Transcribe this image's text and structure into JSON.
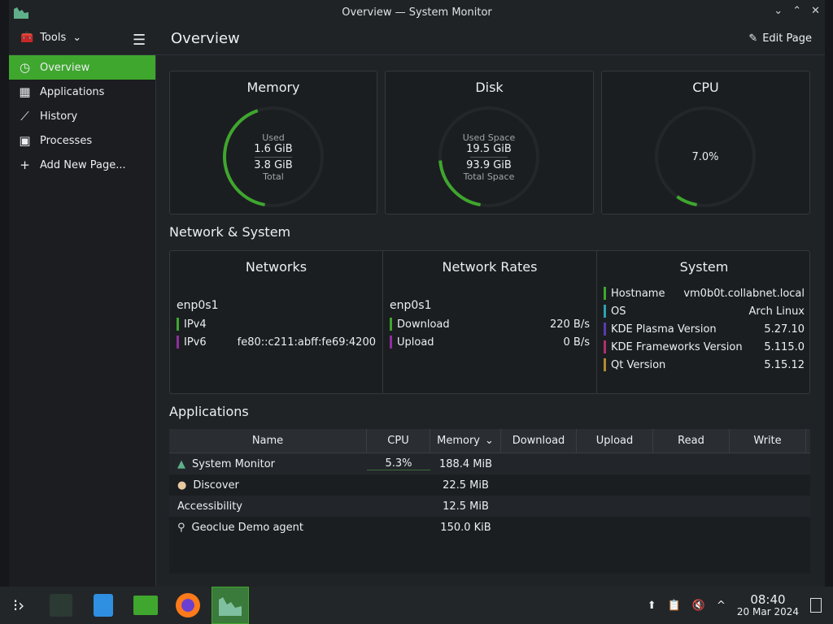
{
  "window": {
    "title": "Overview — System Monitor",
    "buttons": [
      "⌄",
      "⌃",
      "✕"
    ]
  },
  "toolbar": {
    "tools_label": "Tools",
    "page_title": "Overview",
    "edit_label": "Edit Page"
  },
  "sidebar": {
    "items": [
      {
        "label": "Overview",
        "icon": "gauge-icon",
        "glyph": "◷",
        "active": true
      },
      {
        "label": "Applications",
        "icon": "grid-icon",
        "glyph": "▦"
      },
      {
        "label": "History",
        "icon": "chart-icon",
        "glyph": "⟋"
      },
      {
        "label": "Processes",
        "icon": "window-icon",
        "glyph": "▣"
      },
      {
        "label": "Add New Page...",
        "icon": "plus-icon",
        "glyph": "+"
      }
    ]
  },
  "cards": {
    "memory": {
      "title": "Memory",
      "top_label": "Used",
      "used": "1.6 GiB",
      "total": "3.8 GiB",
      "bottom_label": "Total",
      "fraction": 0.42
    },
    "disk": {
      "title": "Disk",
      "top_label": "Used Space",
      "used": "19.5 GiB",
      "total": "93.9 GiB",
      "bottom_label": "Total Space",
      "fraction": 0.21
    },
    "cpu": {
      "title": "CPU",
      "value": "7.0%",
      "fraction": 0.07
    }
  },
  "accent": "#3fa62e",
  "network_system": {
    "title": "Network & System",
    "networks": {
      "title": "Networks",
      "iface": "enp0s1",
      "rows": [
        {
          "k": "IPv4",
          "v": "",
          "color": "#3fa62e"
        },
        {
          "k": "IPv6",
          "v": "fe80::c211:abff:fe69:4200",
          "color": "#8e2e9e"
        }
      ]
    },
    "rates": {
      "title": "Network Rates",
      "iface": "enp0s1",
      "rows": [
        {
          "k": "Download",
          "v": "220 B/s",
          "color": "#3fa62e"
        },
        {
          "k": "Upload",
          "v": "0 B/s",
          "color": "#8e2e9e"
        }
      ]
    },
    "system": {
      "title": "System",
      "rows": [
        {
          "k": "Hostname",
          "v": "vm0b0t.collabnet.local",
          "color": "#3fa62e"
        },
        {
          "k": "OS",
          "v": "Arch Linux",
          "color": "#2ea0b0"
        },
        {
          "k": "KDE Plasma Version",
          "v": "5.27.10",
          "color": "#5a3ab0"
        },
        {
          "k": "KDE Frameworks Version",
          "v": "5.115.0",
          "color": "#b02e6e"
        },
        {
          "k": "Qt Version",
          "v": "5.15.12",
          "color": "#b08a2e"
        }
      ]
    }
  },
  "applications": {
    "title": "Applications",
    "columns": [
      "Name",
      "CPU",
      "Memory",
      "Download",
      "Upload",
      "Read",
      "Write"
    ],
    "rows": [
      {
        "name": "System Monitor",
        "cpu": "5.3%",
        "memory": "188.4 MiB",
        "icon": "system-monitor-icon"
      },
      {
        "name": "Discover",
        "cpu": "",
        "memory": "22.5 MiB",
        "icon": "discover-icon"
      },
      {
        "name": "Accessibility",
        "cpu": "",
        "memory": "12.5 MiB",
        "icon": ""
      },
      {
        "name": "Geoclue Demo agent",
        "cpu": "",
        "memory": "150.0 KiB",
        "icon": "location-icon"
      }
    ]
  },
  "taskbar": {
    "time": "08:40",
    "date": "20 Mar 2024"
  }
}
